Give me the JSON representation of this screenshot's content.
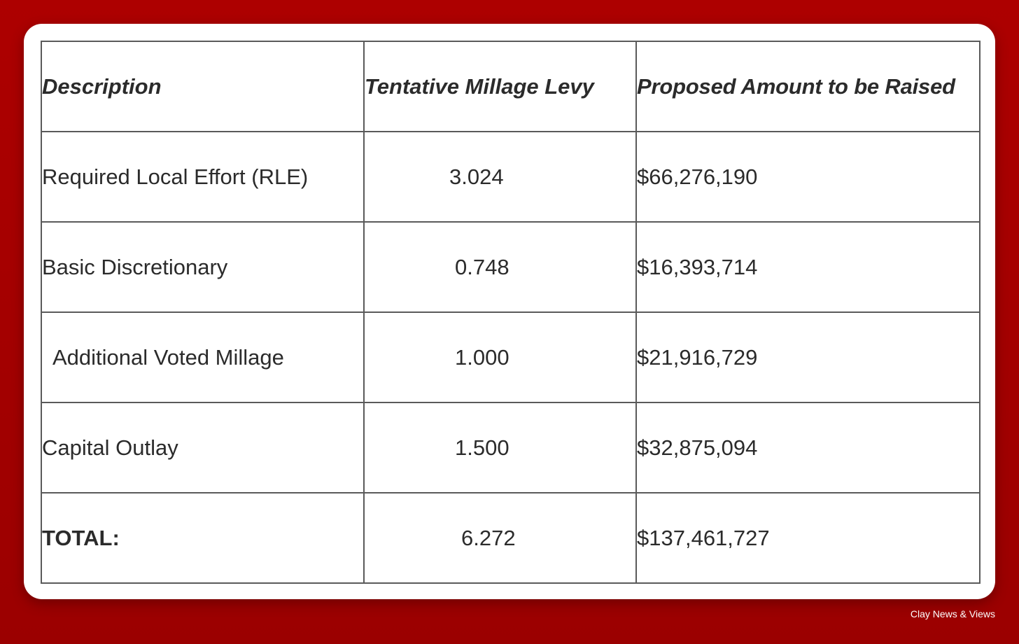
{
  "table": {
    "headers": {
      "description": "Description",
      "levy": "Tentative Millage Levy",
      "amount": "Proposed Amount to be Raised"
    },
    "rows": [
      {
        "description": "Required Local Effort  (RLE)",
        "levy": "3.024",
        "amount": "$66,276,190"
      },
      {
        "description": "Basic Discretionary",
        "levy": "0.748",
        "amount": "$16,393,714"
      },
      {
        "description": "Additional Voted Millage",
        "levy": "1.000",
        "amount": "$21,916,729"
      },
      {
        "description": "Capital Outlay",
        "levy": "1.500",
        "amount": "$32,875,094"
      }
    ],
    "total": {
      "description": "TOTAL:",
      "levy": "6.272",
      "amount": "$137,461,727"
    }
  },
  "credit": "Clay News & Views",
  "colors": {
    "background": "#a40000",
    "card": "#ffffff",
    "border": "#5a5a5a",
    "text": "#2b2b2b"
  }
}
